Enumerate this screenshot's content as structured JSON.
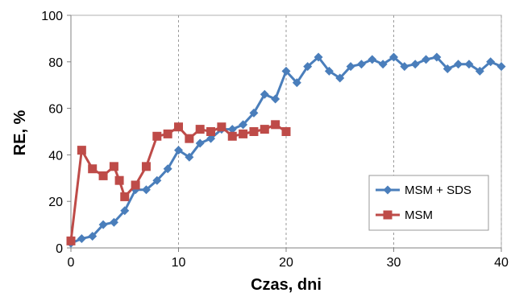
{
  "chart_data": {
    "type": "line",
    "xlabel": "Czas, dni",
    "ylabel": "RE, %",
    "xlim": [
      0,
      40
    ],
    "ylim": [
      0,
      100
    ],
    "xticks": [
      0,
      10,
      20,
      30,
      40
    ],
    "yticks": [
      0,
      20,
      40,
      60,
      80,
      100
    ],
    "grid": "vertical dashed",
    "legend_position": "bottom-right",
    "series": [
      {
        "name": "MSM + SDS",
        "color": "#4a7ebb",
        "marker": "diamond",
        "x": [
          0,
          1,
          2,
          3,
          4,
          5,
          6,
          7,
          8,
          9,
          10,
          11,
          12,
          13,
          14,
          15,
          16,
          17,
          18,
          19,
          20,
          21,
          22,
          23,
          24,
          25,
          26,
          27,
          28,
          29,
          30,
          31,
          32,
          33,
          34,
          35,
          36,
          37,
          38,
          39,
          40
        ],
        "values": [
          2,
          4,
          5,
          10,
          11,
          16,
          25,
          25,
          29,
          34,
          42,
          39,
          45,
          47,
          51,
          51,
          53,
          58,
          66,
          64,
          76,
          71,
          78,
          82,
          76,
          73,
          78,
          79,
          81,
          79,
          82,
          78,
          79,
          81,
          82,
          77,
          79,
          79,
          76,
          80,
          78
        ]
      },
      {
        "name": "MSM",
        "color": "#be4b48",
        "marker": "square",
        "x": [
          0,
          1,
          2,
          3,
          4,
          4.5,
          5,
          6,
          7,
          8,
          9,
          10,
          11,
          12,
          13,
          14,
          15,
          16,
          17,
          18,
          19,
          20
        ],
        "values": [
          3,
          42,
          34,
          31,
          35,
          29,
          22,
          27,
          35,
          48,
          49,
          52,
          47,
          51,
          50,
          52,
          48,
          49,
          50,
          51,
          53,
          50
        ]
      }
    ]
  }
}
